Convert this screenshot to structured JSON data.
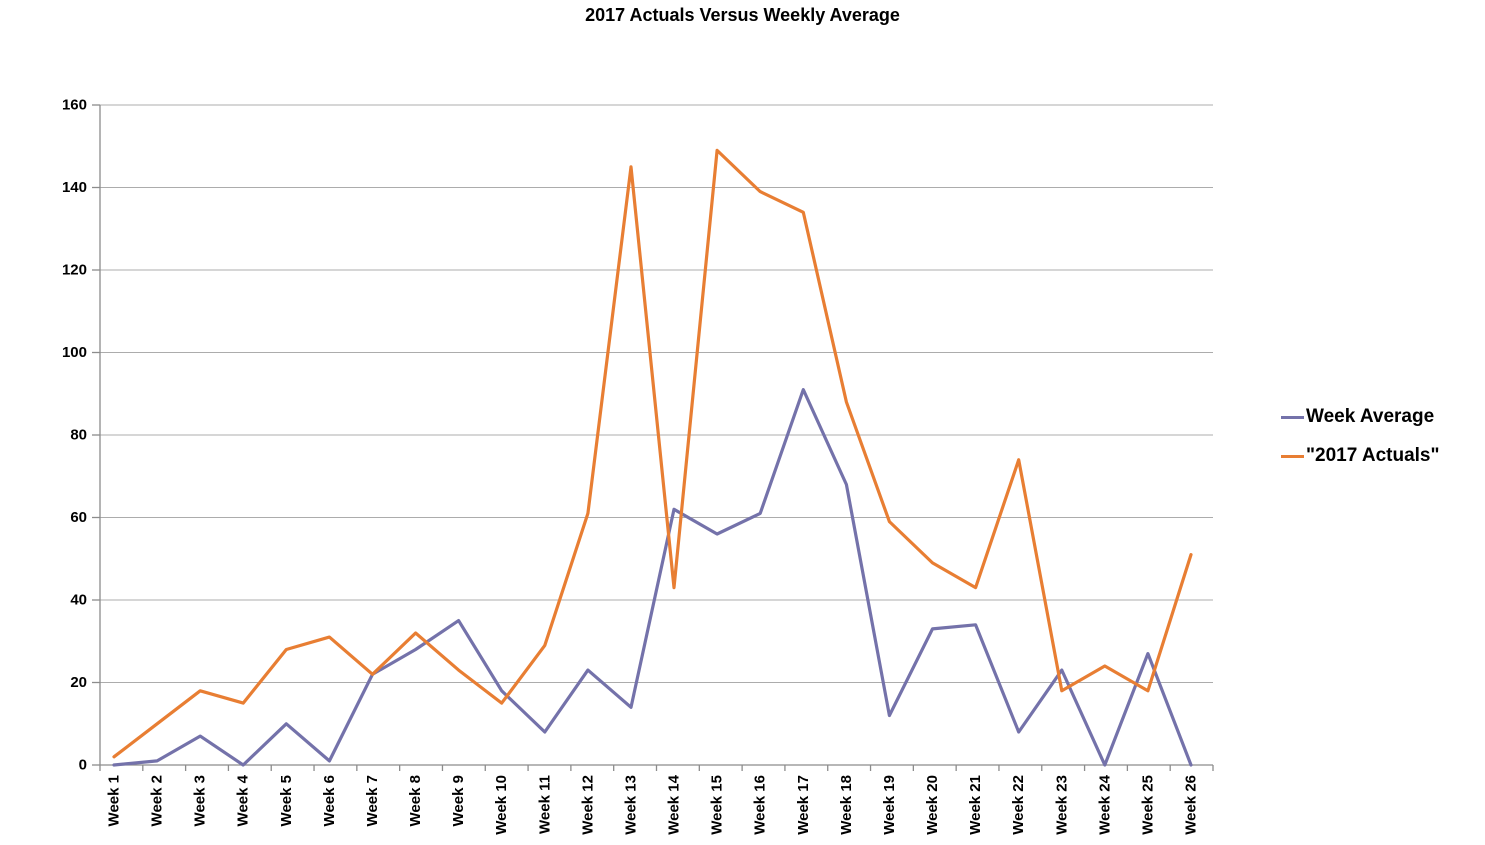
{
  "title": "2017 Actuals Versus Weekly Average",
  "chart_data": {
    "type": "line",
    "title": "2017 Actuals Versus Weekly Average",
    "categories": [
      "Week 1",
      "Week 2",
      "Week 3",
      "Week 4",
      "Week 5",
      "Week 6",
      "Week 7",
      "Week 8",
      "Week 9",
      "Week 10",
      "Week 11",
      "Week 12",
      "Week 13",
      "Week 14",
      "Week 15",
      "Week 16",
      "Week 17",
      "Week 18",
      "Week 19",
      "Week 20",
      "Week 21",
      "Week 22",
      "Week 23",
      "Week 24",
      "Week 25",
      "Week 26"
    ],
    "series": [
      {
        "name": "Week Average",
        "color": "#7472AA",
        "values": [
          0,
          1,
          7,
          0,
          10,
          1,
          22,
          28,
          35,
          18,
          8,
          23,
          14,
          62,
          56,
          61,
          91,
          68,
          12,
          33,
          34,
          8,
          23,
          0,
          27,
          0
        ]
      },
      {
        "name": "\"2017 Actuals\"",
        "color": "#E87E33",
        "values": [
          2,
          10,
          18,
          15,
          28,
          31,
          22,
          32,
          23,
          15,
          29,
          61,
          145,
          43,
          149,
          139,
          134,
          88,
          59,
          49,
          43,
          74,
          18,
          24,
          18,
          51
        ]
      }
    ],
    "xlabel": "",
    "ylabel": "",
    "ylim": [
      0,
      160
    ],
    "yticks": [
      0,
      20,
      40,
      60,
      80,
      100,
      120,
      140,
      160
    ],
    "grid": "horizontal",
    "legend_position": "right",
    "x_tick_label_rotation": -90
  },
  "style_colors": {
    "gridline": "#ACACAC",
    "axis": "#8C8C8C",
    "text": "#000000"
  }
}
